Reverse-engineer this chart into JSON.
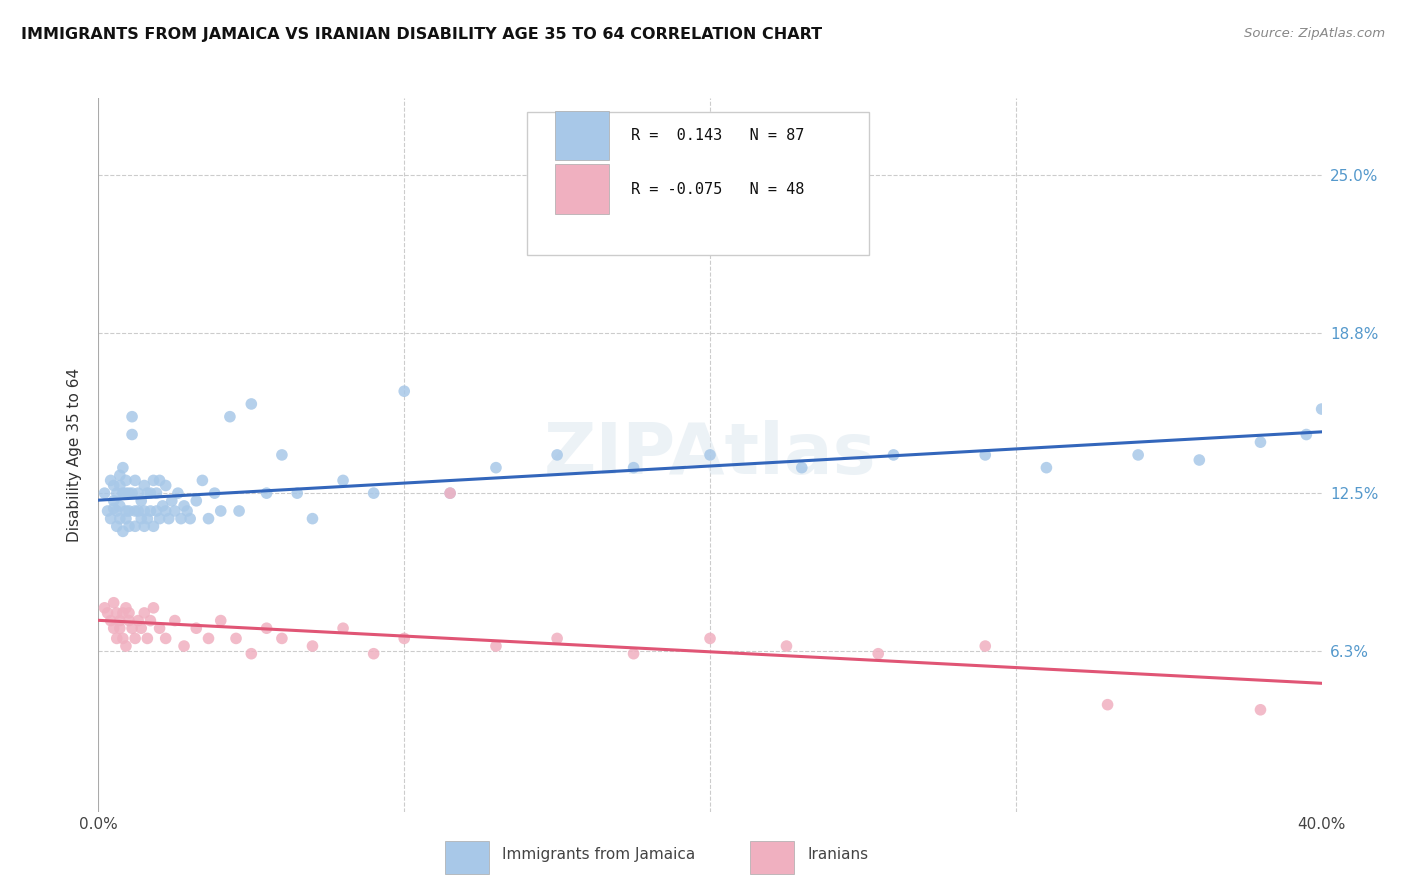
{
  "title": "IMMIGRANTS FROM JAMAICA VS IRANIAN DISABILITY AGE 35 TO 64 CORRELATION CHART",
  "source": "Source: ZipAtlas.com",
  "ylabel": "Disability Age 35 to 64",
  "yticks_pct": [
    6.3,
    12.5,
    18.8,
    25.0
  ],
  "ytick_labels": [
    "6.3%",
    "12.5%",
    "18.8%",
    "25.0%"
  ],
  "xmin": 0.0,
  "xmax": 0.4,
  "ymin": 0.0,
  "ymax": 0.28,
  "series1_color": "#a8c8e8",
  "series2_color": "#f0b0c0",
  "line1_color": "#3366bb",
  "line2_color": "#e05575",
  "jamaica_R": 0.143,
  "jamaica_N": 87,
  "iranian_R": -0.075,
  "iranian_N": 48,
  "jamaica_x": [
    0.002,
    0.003,
    0.004,
    0.004,
    0.005,
    0.005,
    0.005,
    0.006,
    0.006,
    0.006,
    0.007,
    0.007,
    0.007,
    0.007,
    0.008,
    0.008,
    0.008,
    0.009,
    0.009,
    0.009,
    0.009,
    0.01,
    0.01,
    0.01,
    0.011,
    0.011,
    0.011,
    0.012,
    0.012,
    0.012,
    0.013,
    0.013,
    0.014,
    0.014,
    0.015,
    0.015,
    0.015,
    0.016,
    0.016,
    0.017,
    0.017,
    0.018,
    0.018,
    0.019,
    0.019,
    0.02,
    0.02,
    0.021,
    0.022,
    0.022,
    0.023,
    0.024,
    0.025,
    0.026,
    0.027,
    0.028,
    0.029,
    0.03,
    0.032,
    0.034,
    0.036,
    0.038,
    0.04,
    0.043,
    0.046,
    0.05,
    0.055,
    0.06,
    0.065,
    0.07,
    0.08,
    0.09,
    0.1,
    0.115,
    0.13,
    0.15,
    0.175,
    0.2,
    0.23,
    0.26,
    0.29,
    0.31,
    0.34,
    0.36,
    0.38,
    0.395,
    0.4
  ],
  "jamaica_y": [
    0.125,
    0.118,
    0.13,
    0.115,
    0.122,
    0.119,
    0.128,
    0.112,
    0.125,
    0.118,
    0.132,
    0.115,
    0.128,
    0.12,
    0.11,
    0.125,
    0.135,
    0.115,
    0.125,
    0.118,
    0.13,
    0.112,
    0.125,
    0.118,
    0.155,
    0.148,
    0.125,
    0.118,
    0.13,
    0.112,
    0.125,
    0.118,
    0.122,
    0.115,
    0.128,
    0.118,
    0.112,
    0.125,
    0.115,
    0.125,
    0.118,
    0.13,
    0.112,
    0.118,
    0.125,
    0.115,
    0.13,
    0.12,
    0.118,
    0.128,
    0.115,
    0.122,
    0.118,
    0.125,
    0.115,
    0.12,
    0.118,
    0.115,
    0.122,
    0.13,
    0.115,
    0.125,
    0.118,
    0.155,
    0.118,
    0.16,
    0.125,
    0.14,
    0.125,
    0.115,
    0.13,
    0.125,
    0.165,
    0.125,
    0.135,
    0.14,
    0.135,
    0.14,
    0.135,
    0.14,
    0.14,
    0.135,
    0.14,
    0.138,
    0.145,
    0.148,
    0.158
  ],
  "iranian_x": [
    0.002,
    0.003,
    0.004,
    0.005,
    0.005,
    0.006,
    0.006,
    0.007,
    0.007,
    0.008,
    0.008,
    0.009,
    0.009,
    0.01,
    0.01,
    0.011,
    0.012,
    0.013,
    0.014,
    0.015,
    0.016,
    0.017,
    0.018,
    0.02,
    0.022,
    0.025,
    0.028,
    0.032,
    0.036,
    0.04,
    0.045,
    0.05,
    0.055,
    0.06,
    0.07,
    0.08,
    0.09,
    0.1,
    0.115,
    0.13,
    0.15,
    0.175,
    0.2,
    0.225,
    0.255,
    0.29,
    0.33,
    0.38
  ],
  "iranian_y": [
    0.08,
    0.078,
    0.075,
    0.072,
    0.082,
    0.078,
    0.068,
    0.075,
    0.072,
    0.078,
    0.068,
    0.08,
    0.065,
    0.075,
    0.078,
    0.072,
    0.068,
    0.075,
    0.072,
    0.078,
    0.068,
    0.075,
    0.08,
    0.072,
    0.068,
    0.075,
    0.065,
    0.072,
    0.068,
    0.075,
    0.068,
    0.062,
    0.072,
    0.068,
    0.065,
    0.072,
    0.062,
    0.068,
    0.125,
    0.065,
    0.068,
    0.062,
    0.068,
    0.065,
    0.062,
    0.065,
    0.042,
    0.04
  ]
}
